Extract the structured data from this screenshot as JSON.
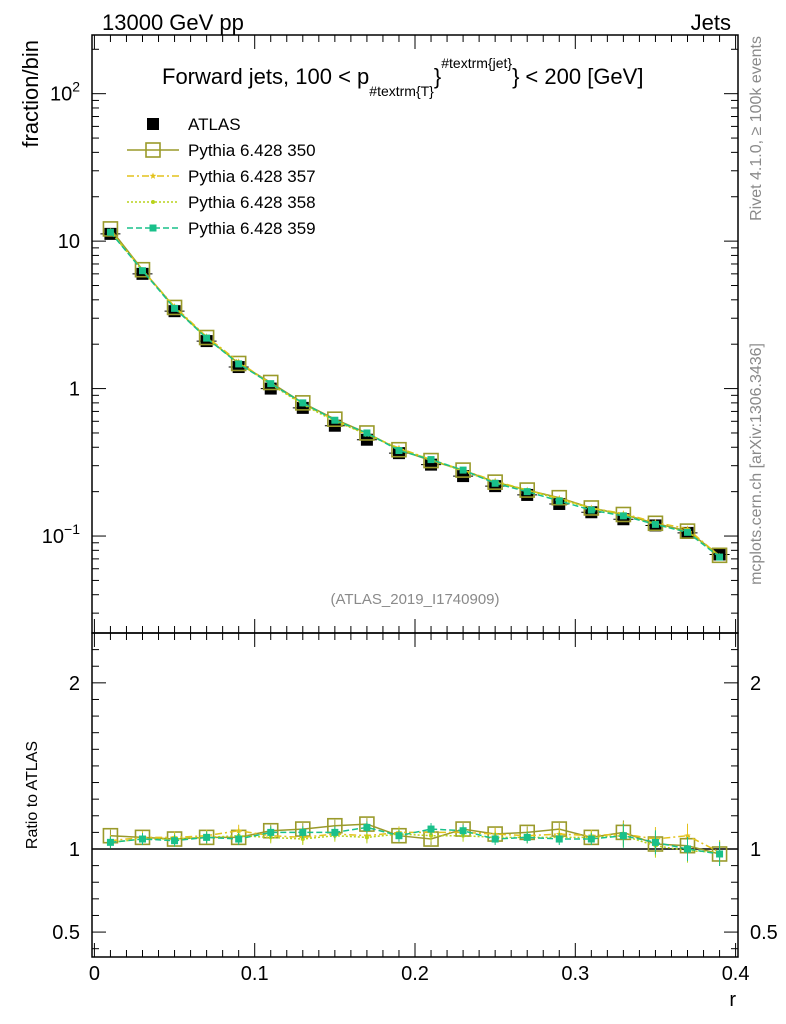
{
  "header": {
    "left": "13000 GeV pp",
    "right": "Jets"
  },
  "side_labels": {
    "top": "Rivet 4.1.0, ≥ 100k events",
    "bottom": "mcplots.cern.ch [arXiv:1306.3436]"
  },
  "chart_data": [
    {
      "type": "line",
      "panel": "main",
      "title": "Forward jets, 100 < p",
      "title_sub": "#textrm{T}",
      "title_sup": "#textrm{jet}",
      "title_tail": "< 200 [GeV]",
      "analysis_label": "(ATLAS_2019_I1740909)",
      "xlabel": "r",
      "ylabel": "fraction/bin",
      "yscale": "log",
      "xlim": [
        -0.0015,
        0.4015
      ],
      "ylim": [
        0.022,
        250
      ],
      "y_ticks": [
        {
          "value": 0.1,
          "base": "10",
          "exp": "−1"
        },
        {
          "value": 1,
          "base": "1",
          "exp": ""
        },
        {
          "value": 10,
          "base": "10",
          "exp": ""
        },
        {
          "value": 100,
          "base": "10",
          "exp": "2"
        }
      ],
      "x": [
        0.01,
        0.03,
        0.05,
        0.07,
        0.09,
        0.11,
        0.13,
        0.15,
        0.17,
        0.19,
        0.21,
        0.23,
        0.25,
        0.27,
        0.29,
        0.31,
        0.33,
        0.35,
        0.37,
        0.39
      ],
      "series": [
        {
          "name": "ATLAS",
          "color": "#000000",
          "marker": "square",
          "values": [
            11.2,
            6.0,
            3.35,
            2.1,
            1.4,
            1.0,
            0.74,
            0.56,
            0.45,
            0.365,
            0.305,
            0.255,
            0.218,
            0.19,
            0.165,
            0.145,
            0.13,
            0.118,
            0.105,
            0.075
          ]
        },
        {
          "name": "Pythia 6.428 350",
          "color": "#9a9a2a",
          "marker": "open-square",
          "dash": "",
          "values": [
            12.1,
            6.4,
            3.55,
            2.22,
            1.48,
            1.1,
            0.8,
            0.62,
            0.5,
            0.385,
            0.325,
            0.28,
            0.232,
            0.205,
            0.182,
            0.155,
            0.14,
            0.122,
            0.108,
            0.074
          ]
        },
        {
          "name": "Pythia 6.428 357",
          "color": "#e3c21b",
          "marker": "star",
          "dash": "7,3,2,3",
          "values": [
            11.7,
            6.35,
            3.6,
            2.25,
            1.52,
            1.08,
            0.79,
            0.61,
            0.49,
            0.395,
            0.33,
            0.28,
            0.236,
            0.205,
            0.18,
            0.155,
            0.142,
            0.124,
            0.112,
            0.073
          ]
        },
        {
          "name": "Pythia 6.428 358",
          "color": "#b8d21a",
          "marker": "dot",
          "dash": "2,2",
          "values": [
            11.6,
            6.3,
            3.55,
            2.2,
            1.49,
            1.07,
            0.78,
            0.6,
            0.49,
            0.39,
            0.33,
            0.275,
            0.232,
            0.205,
            0.178,
            0.154,
            0.14,
            0.12,
            0.107,
            0.073
          ]
        },
        {
          "name": "Pythia 6.428 359",
          "color": "#19c08a",
          "marker": "filled-square",
          "dash": "6,3",
          "values": [
            11.5,
            6.3,
            3.5,
            2.2,
            1.47,
            1.08,
            0.8,
            0.61,
            0.5,
            0.38,
            0.33,
            0.28,
            0.228,
            0.2,
            0.173,
            0.15,
            0.137,
            0.12,
            0.106,
            0.072
          ]
        }
      ]
    },
    {
      "type": "line",
      "panel": "ratio",
      "ylabel": "Ratio to ATLAS",
      "xlabel": "r",
      "ylim": [
        0.35,
        2.3
      ],
      "y_ticks": [
        0.5,
        1,
        2
      ],
      "y_tick_labels": [
        "0.5",
        "1",
        "2"
      ],
      "x_ticks": [
        0,
        0.1,
        0.2,
        0.3,
        0.4
      ],
      "x_tick_labels": [
        "0",
        "0.1",
        "0.2",
        "0.3",
        "0.4"
      ],
      "reference": 1,
      "x": [
        0.01,
        0.03,
        0.05,
        0.07,
        0.09,
        0.11,
        0.13,
        0.15,
        0.17,
        0.19,
        0.21,
        0.23,
        0.25,
        0.27,
        0.29,
        0.31,
        0.33,
        0.35,
        0.37,
        0.39
      ],
      "series": [
        {
          "name": "Pythia 6.428 350",
          "color": "#9a9a2a",
          "marker": "open-square",
          "dash": "",
          "values": [
            1.08,
            1.07,
            1.06,
            1.07,
            1.07,
            1.11,
            1.12,
            1.14,
            1.15,
            1.08,
            1.06,
            1.12,
            1.09,
            1.1,
            1.12,
            1.07,
            1.1,
            1.03,
            1.02,
            0.97
          ]
        },
        {
          "name": "Pythia 6.428 357",
          "color": "#e3c21b",
          "marker": "star",
          "dash": "7,3,2,3",
          "values": [
            1.05,
            1.07,
            1.07,
            1.08,
            1.11,
            1.08,
            1.07,
            1.09,
            1.08,
            1.1,
            1.1,
            1.1,
            1.09,
            1.08,
            1.09,
            1.08,
            1.09,
            1.06,
            1.08,
            0.98
          ]
        },
        {
          "name": "Pythia 6.428 358",
          "color": "#b8d21a",
          "marker": "dot",
          "dash": "2,2",
          "values": [
            1.04,
            1.06,
            1.06,
            1.07,
            1.08,
            1.07,
            1.06,
            1.08,
            1.07,
            1.09,
            1.08,
            1.08,
            1.07,
            1.07,
            1.07,
            1.07,
            1.08,
            1.02,
            0.99,
            0.98
          ]
        },
        {
          "name": "Pythia 6.428 359",
          "color": "#19c08a",
          "marker": "filled-square",
          "dash": "6,3",
          "values": [
            1.04,
            1.06,
            1.05,
            1.07,
            1.06,
            1.1,
            1.1,
            1.1,
            1.13,
            1.08,
            1.12,
            1.11,
            1.06,
            1.07,
            1.06,
            1.06,
            1.08,
            1.04,
            1.0,
            0.97
          ]
        }
      ]
    }
  ]
}
